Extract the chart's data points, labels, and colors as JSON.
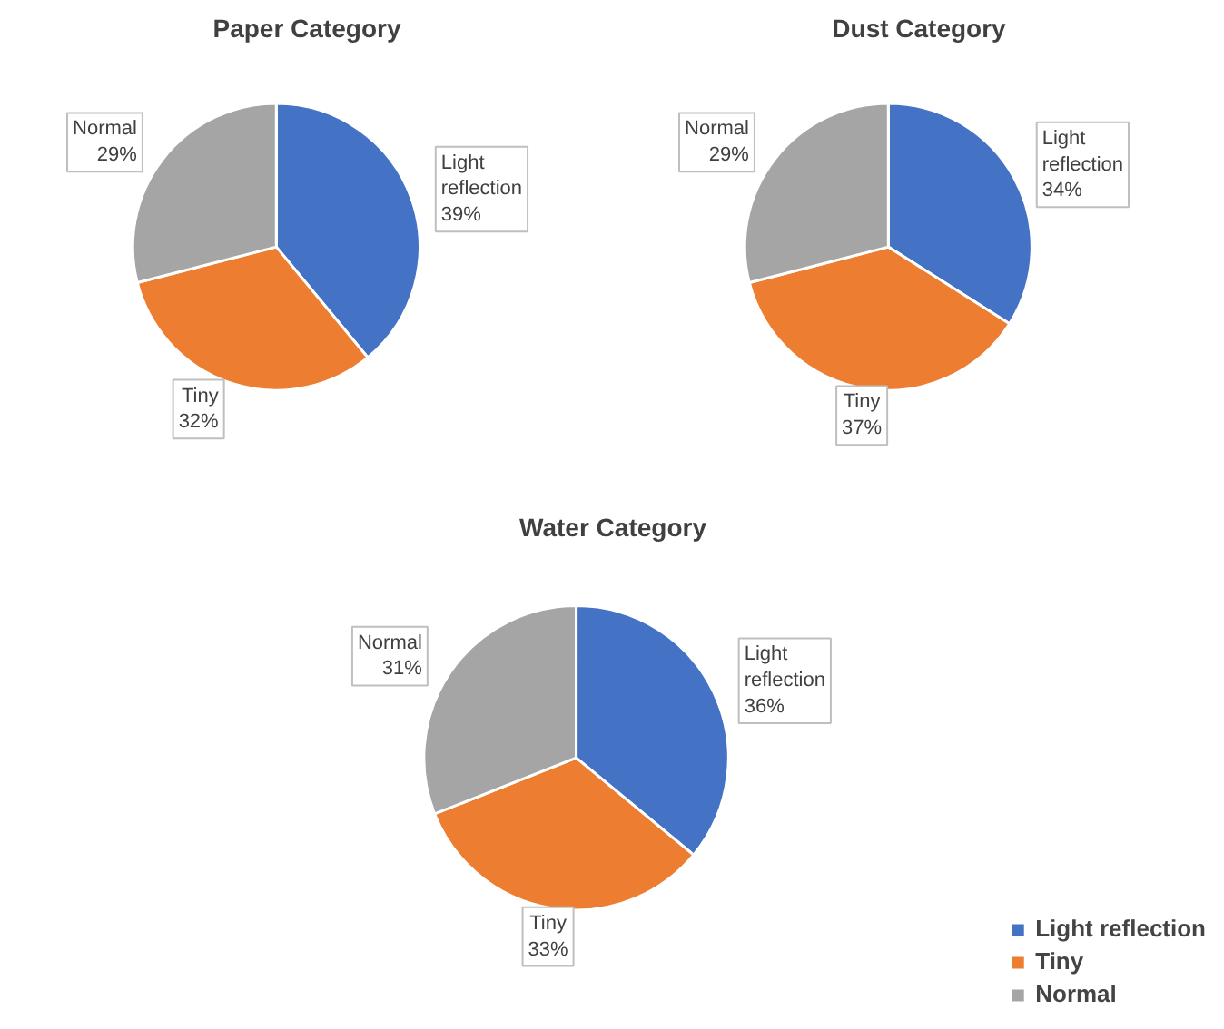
{
  "chart_data": [
    {
      "type": "pie",
      "title": "Paper Category",
      "categories": [
        "Light reflection",
        "Tiny",
        "Normal"
      ],
      "values": [
        39,
        32,
        29
      ],
      "value_labels": [
        "39%",
        "32%",
        "29%"
      ],
      "colors": [
        "#4472c4",
        "#ed7d31",
        "#a5a5a5"
      ],
      "legend": false
    },
    {
      "type": "pie",
      "title": "Dust Category",
      "categories": [
        "Light reflection",
        "Tiny",
        "Normal"
      ],
      "values": [
        34,
        37,
        29
      ],
      "value_labels": [
        "34%",
        "37%",
        "29%"
      ],
      "colors": [
        "#4472c4",
        "#ed7d31",
        "#a5a5a5"
      ],
      "legend": false
    },
    {
      "type": "pie",
      "title": "Water Category",
      "categories": [
        "Light reflection",
        "Tiny",
        "Normal"
      ],
      "values": [
        36,
        33,
        31
      ],
      "value_labels": [
        "36%",
        "33%",
        "31%"
      ],
      "colors": [
        "#4472c4",
        "#ed7d31",
        "#a5a5a5"
      ],
      "legend": "right"
    }
  ]
}
